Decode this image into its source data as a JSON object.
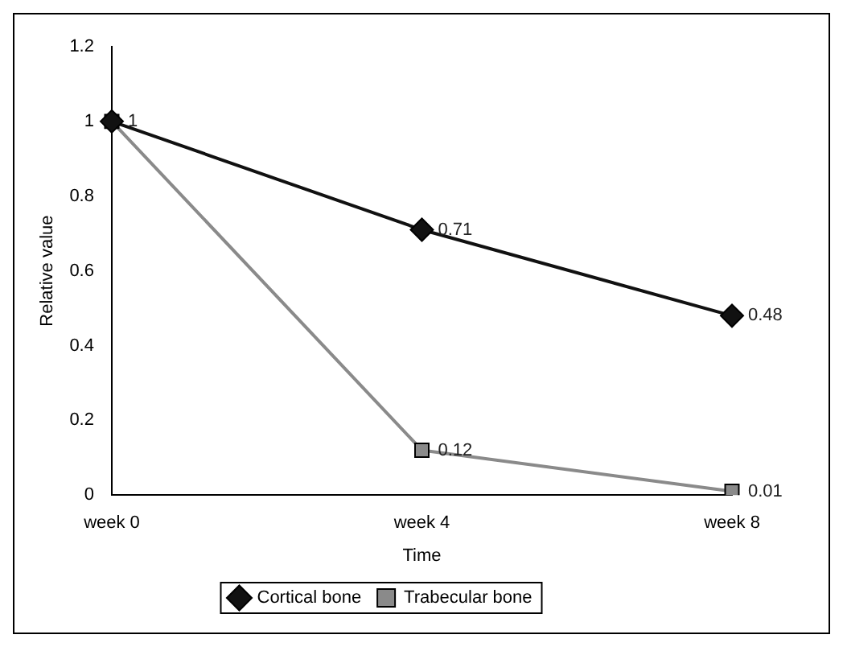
{
  "chart_data": {
    "type": "line",
    "categories": [
      "week 0",
      "week 4",
      "week 8"
    ],
    "xlabel": "Time",
    "ylabel": "Relative value",
    "ylim": [
      0,
      1.2
    ],
    "yticks": [
      0,
      0.2,
      0.4,
      0.6,
      0.8,
      1,
      1.2
    ],
    "grid": false,
    "legend": "bottom",
    "line_style": "solid",
    "series": [
      {
        "name": "Cortical bone",
        "color": "#111111",
        "marker": "diamond",
        "values": [
          1,
          0.71,
          0.48
        ],
        "value_labels": [
          null,
          "0.71",
          "0.48"
        ]
      },
      {
        "name": "Trabecular bone",
        "color": "#8a8a8a",
        "marker": "square",
        "values": [
          1,
          0.12,
          0.01
        ],
        "value_labels": [
          "1",
          "0.12",
          "0.01"
        ]
      }
    ]
  }
}
